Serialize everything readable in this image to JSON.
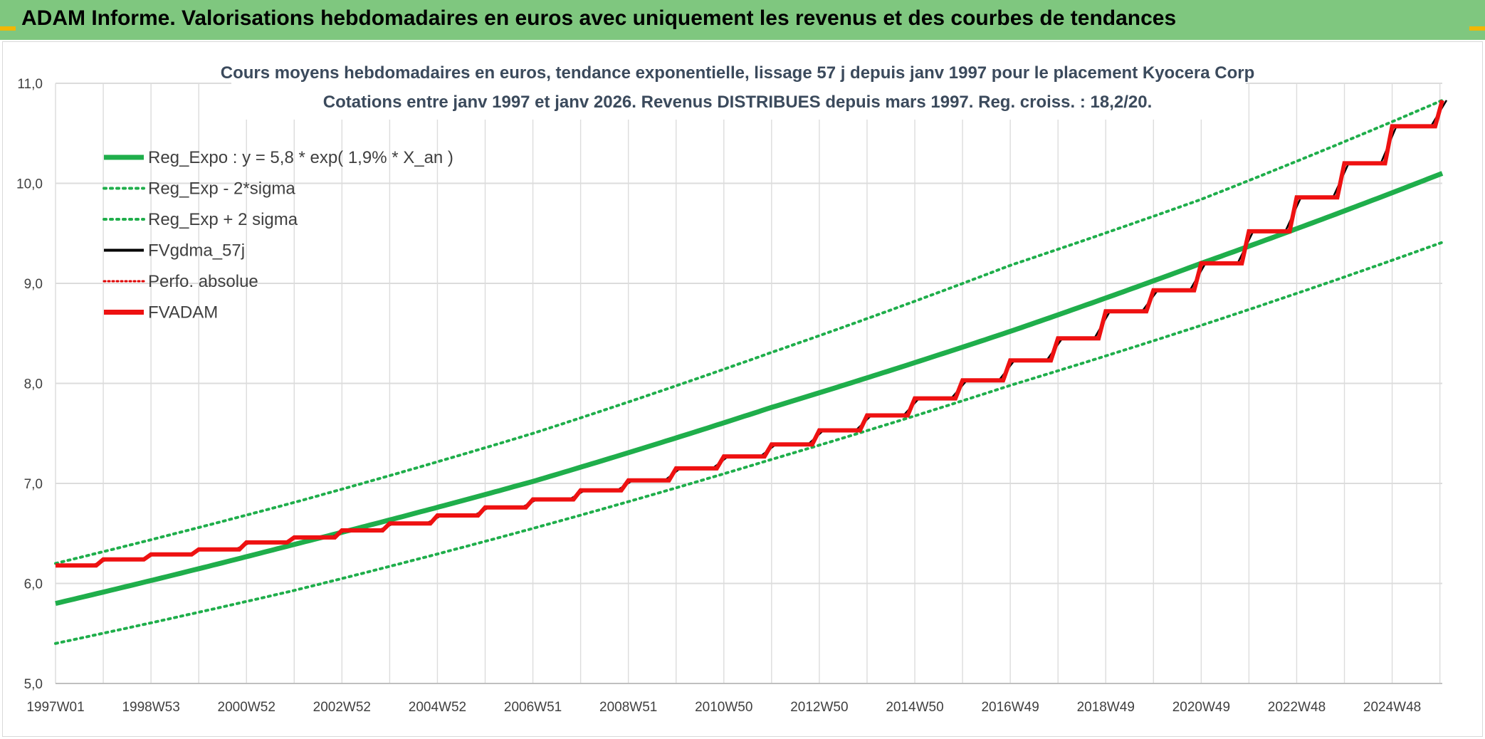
{
  "page_title": "ADAM Informe. Valorisations hebdomadaires en euros avec uniquement les revenus et des courbes de tendances",
  "colors": {
    "banner": "#7fc77f",
    "accent": "#f2b705",
    "reg_expo": "#1fae4b",
    "fvgdma": "#000000",
    "perfo": "#e00000",
    "fvadam": "#ee1111",
    "grid": "#dcdcdc",
    "text": "#3b4a5c"
  },
  "chart_data": {
    "type": "line",
    "title": "Cours moyens hebdomadaires en euros, tendance exponentielle, lissage 57 j depuis janv 1997 pour le placement Kyocera Corp",
    "subtitle": "Cotations entre janv 1997 et janv 2026. Revenus DISTRIBUES depuis mars 1997. Reg. croiss. : 18,2/20.",
    "x_range": [
      1997.0,
      2026.05
    ],
    "ylim": [
      5.0,
      11.0
    ],
    "y_ticks": [
      "5,0",
      "6,0",
      "7,0",
      "8,0",
      "9,0",
      "10,0",
      "11,0"
    ],
    "x_tick_labels": [
      "1997W01",
      "1998W53",
      "2000W52",
      "2002W52",
      "2004W52",
      "2006W51",
      "2008W51",
      "2010W50",
      "2012W50",
      "2014W50",
      "2016W49",
      "2018W49",
      "2020W49",
      "2022W48",
      "2024W48"
    ],
    "x_tick_years": [
      1997.0,
      1999.0,
      2001.0,
      2003.0,
      2005.0,
      2007.0,
      2009.0,
      2011.0,
      2013.0,
      2015.0,
      2017.0,
      2019.0,
      2021.0,
      2023.0,
      2025.0
    ],
    "grid": true,
    "legend_position": "top-left",
    "legend": [
      "Reg_Expo : y = 5,8 * exp( 1,9% *  X_an )",
      "Reg_Exp - 2*sigma",
      "Reg_Exp + 2 sigma",
      "FVgdma_57j",
      "Perfo. absolue",
      "FVADAM"
    ],
    "series": [
      {
        "name": "Reg_Expo : y = 5,8 * exp( 1,9% *  X_an )",
        "style": "solid-thick",
        "x": [
          1997.0,
          2002.0,
          2007.0,
          2012.0,
          2017.0,
          2021.0,
          2026.05
        ],
        "y": [
          5.8,
          6.39,
          7.02,
          7.76,
          8.52,
          9.2,
          10.1
        ]
      },
      {
        "name": "Reg_Exp - 2*sigma",
        "style": "dotted",
        "x": [
          1997.0,
          2002.0,
          2007.0,
          2012.0,
          2017.0,
          2021.0,
          2026.05
        ],
        "y": [
          5.4,
          5.93,
          6.55,
          7.24,
          7.98,
          8.58,
          9.41
        ]
      },
      {
        "name": "Reg_Exp + 2 sigma",
        "style": "dotted",
        "x": [
          1997.0,
          2002.0,
          2007.0,
          2012.0,
          2017.0,
          2021.0,
          2026.05
        ],
        "y": [
          6.2,
          6.81,
          7.5,
          8.31,
          9.18,
          9.84,
          10.83
        ]
      },
      {
        "name": "FVADAM",
        "style": "step-thick",
        "x": [
          1997.0,
          1998.0,
          1999.0,
          2000.0,
          2001.0,
          2002.0,
          2003.0,
          2004.0,
          2005.0,
          2006.0,
          2007.0,
          2008.0,
          2009.0,
          2010.0,
          2011.0,
          2012.0,
          2013.0,
          2014.0,
          2015.0,
          2016.0,
          2017.0,
          2018.0,
          2019.0,
          2020.0,
          2021.0,
          2022.0,
          2023.0,
          2024.0,
          2025.0,
          2026.05
        ],
        "y": [
          6.18,
          6.24,
          6.29,
          6.34,
          6.41,
          6.46,
          6.53,
          6.6,
          6.68,
          6.76,
          6.84,
          6.93,
          7.03,
          7.15,
          7.27,
          7.39,
          7.53,
          7.68,
          7.85,
          8.03,
          8.23,
          8.45,
          8.72,
          8.93,
          9.2,
          9.52,
          9.86,
          10.2,
          10.57,
          10.83
        ]
      },
      {
        "name": "FVgdma_57j",
        "style": "smooth-step",
        "x": [],
        "y": []
      },
      {
        "name": "Perfo. absolue",
        "style": "dotted-red",
        "x": [],
        "y": []
      }
    ]
  }
}
